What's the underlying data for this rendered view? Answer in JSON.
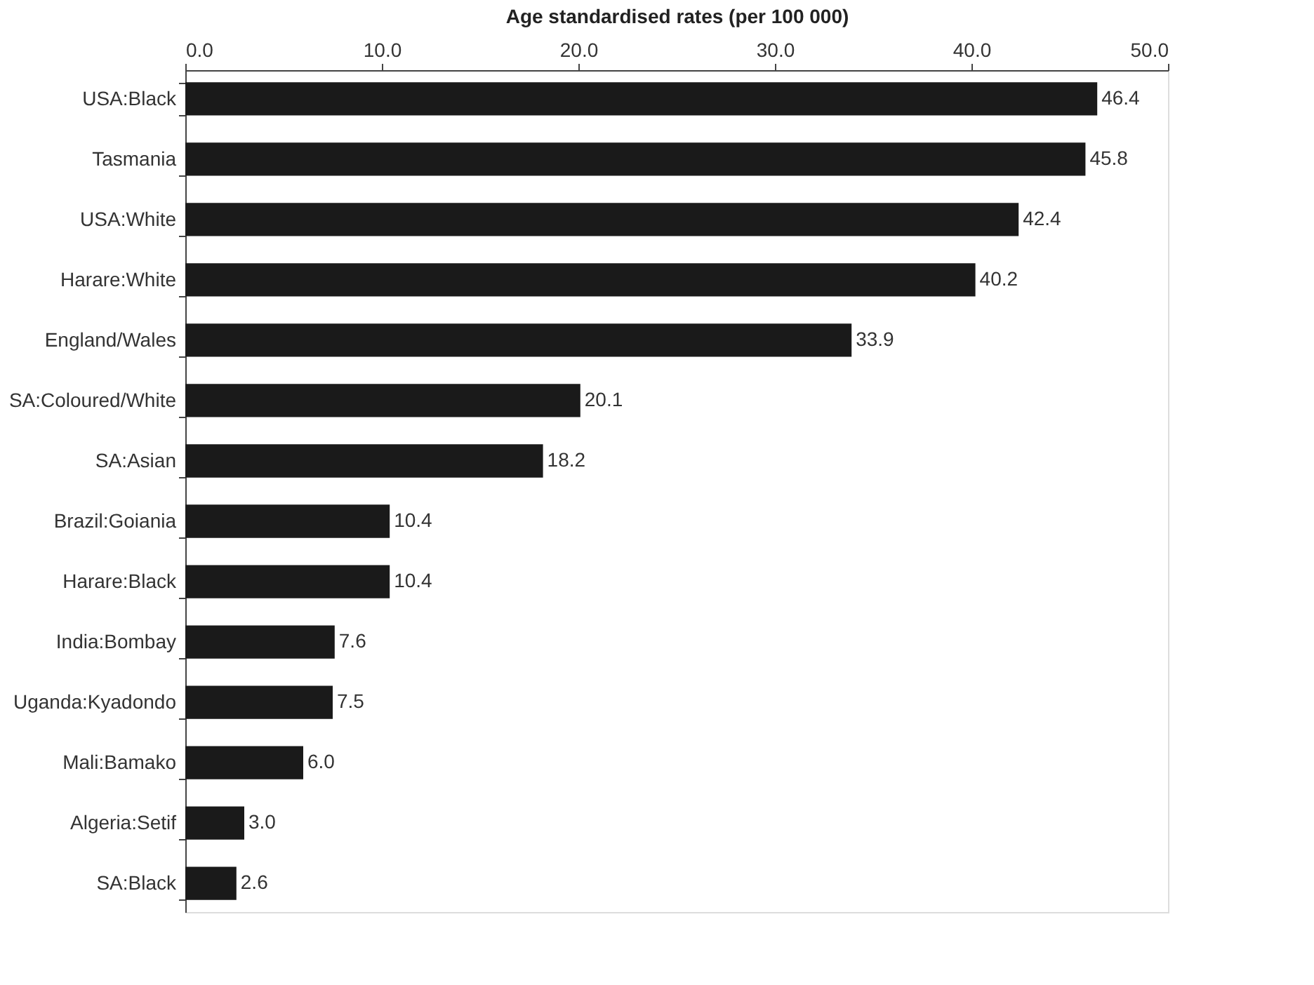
{
  "chart_data": {
    "type": "bar",
    "orientation": "horizontal",
    "xlabel": "Age standardised rates (per 100 000)",
    "categories": [
      "USA:Black",
      "Tasmania",
      "USA:White",
      "Harare:White",
      "England/Wales",
      "SA:Coloured/White",
      "SA:Asian",
      "Brazil:Goiania",
      "Harare:Black",
      "India:Bombay",
      "Uganda:Kyadondo",
      "Mali:Bamako",
      "Algeria:Setif",
      "SA:Black"
    ],
    "values": [
      46.4,
      45.8,
      42.4,
      40.2,
      33.9,
      20.1,
      18.2,
      10.4,
      10.4,
      7.6,
      7.5,
      6.0,
      3.0,
      2.6
    ],
    "value_labels": [
      "46.4",
      "45.8",
      "42.4",
      "40.2",
      "33.9",
      "20.1",
      "18.2",
      "10.4",
      "10.4",
      "7.6",
      "7.5",
      "6.0",
      "3.0",
      "2.6"
    ],
    "color": "#1a1a1a",
    "xlim": [
      0,
      50
    ],
    "xticks": [
      {
        "value": 0,
        "label": "0.0"
      },
      {
        "value": 10,
        "label": "10.0"
      },
      {
        "value": 20,
        "label": "20.0"
      },
      {
        "value": 30,
        "label": "30.0"
      },
      {
        "value": 40,
        "label": "40.0"
      },
      {
        "value": 50,
        "label": "50.0"
      }
    ],
    "grid": false
  }
}
